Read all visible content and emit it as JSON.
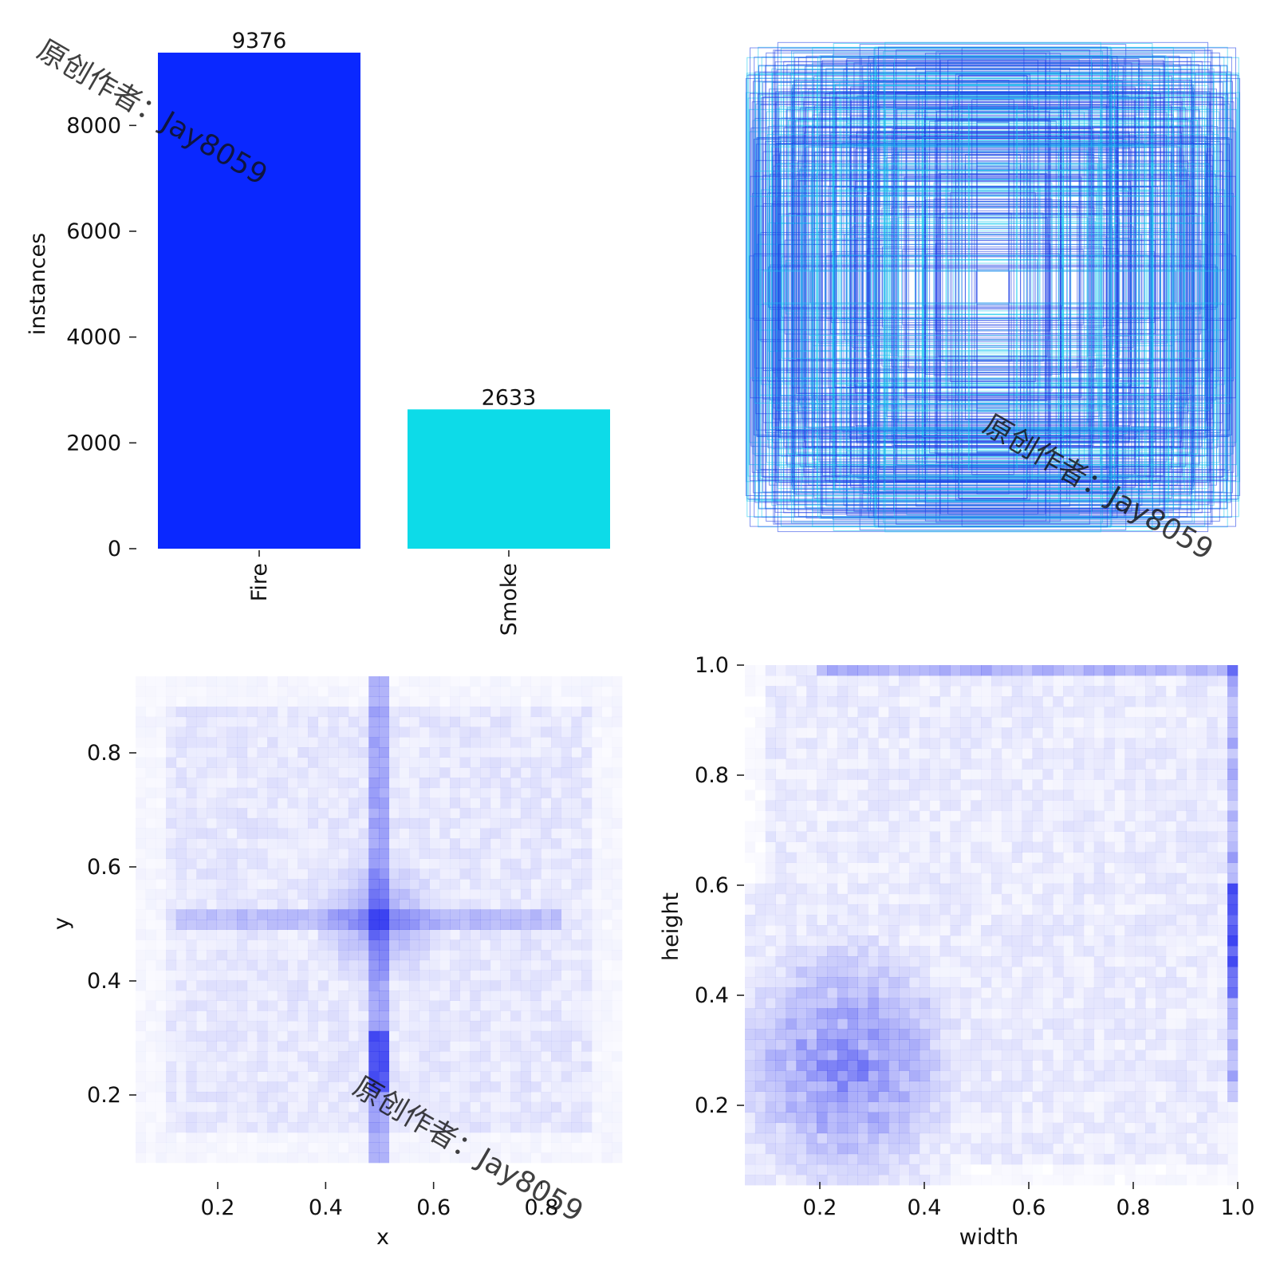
{
  "theme": {
    "fire": "#0a28ff",
    "smoke": "#0ddbe8",
    "heat": "#1a22ee",
    "box_dark": "#1a3be6",
    "box_light": "#14c8ee"
  },
  "watermark": {
    "text": "原创作者：Jay8059"
  },
  "chart_data": [
    {
      "type": "bar",
      "panel": "class-counts",
      "categories": [
        "Fire",
        "Smoke"
      ],
      "values": [
        9376,
        2633
      ],
      "colors": [
        "#0a28ff",
        "#0ddbe8"
      ],
      "xlabel": "",
      "ylabel": "instances",
      "ylim": [
        0,
        9376
      ],
      "yticks": [
        0,
        2000,
        4000,
        6000,
        8000
      ],
      "ytick_labels": [
        "0",
        "2000",
        "4000",
        "6000",
        "8000"
      ],
      "value_labels": [
        "9376",
        "2633"
      ],
      "grid": false
    },
    {
      "type": "box-overlay",
      "panel": "label-boxes",
      "description_of_marks": "many centered rectangles of varying width/height (normalized 0-1) in blue and cyan",
      "xlim": [
        0,
        1
      ],
      "ylim": [
        0,
        1
      ],
      "grid": false
    },
    {
      "type": "heatmap",
      "panel": "xy-distribution",
      "xlabel": "x",
      "ylabel": "y",
      "xlim": [
        0.05,
        0.95
      ],
      "ylim": [
        0.05,
        0.95
      ],
      "xticks": [
        0.2,
        0.4,
        0.6,
        0.8
      ],
      "xtick_labels": [
        "0.2",
        "0.4",
        "0.6",
        "0.8"
      ],
      "yticks": [
        0.2,
        0.4,
        0.6,
        0.8
      ],
      "ytick_labels": [
        "0.2",
        "0.4",
        "0.6",
        "0.8"
      ],
      "features": "dense cross centered at x=0.5, y=0.5; strong vertical band at x=0.5 near y=0.2-0.3",
      "grid": false
    },
    {
      "type": "heatmap",
      "panel": "width-height-distribution",
      "xlabel": "width",
      "ylabel": "height",
      "xlim": [
        0.05,
        1.0
      ],
      "ylim": [
        0.05,
        1.0
      ],
      "xticks": [
        0.2,
        0.4,
        0.6,
        0.8,
        1.0
      ],
      "xtick_labels": [
        "0.2",
        "0.4",
        "0.6",
        "0.8",
        "1.0"
      ],
      "yticks": [
        0.2,
        0.4,
        0.6,
        0.8,
        1.0
      ],
      "ytick_labels": [
        "0.2",
        "0.4",
        "0.6",
        "0.8",
        "1.0"
      ],
      "features": "dense cluster near width 0.15-0.35, height 0.15-0.35; bright column at width=1.0 around height 0.4-0.6; band at height=1.0",
      "grid": false
    }
  ]
}
